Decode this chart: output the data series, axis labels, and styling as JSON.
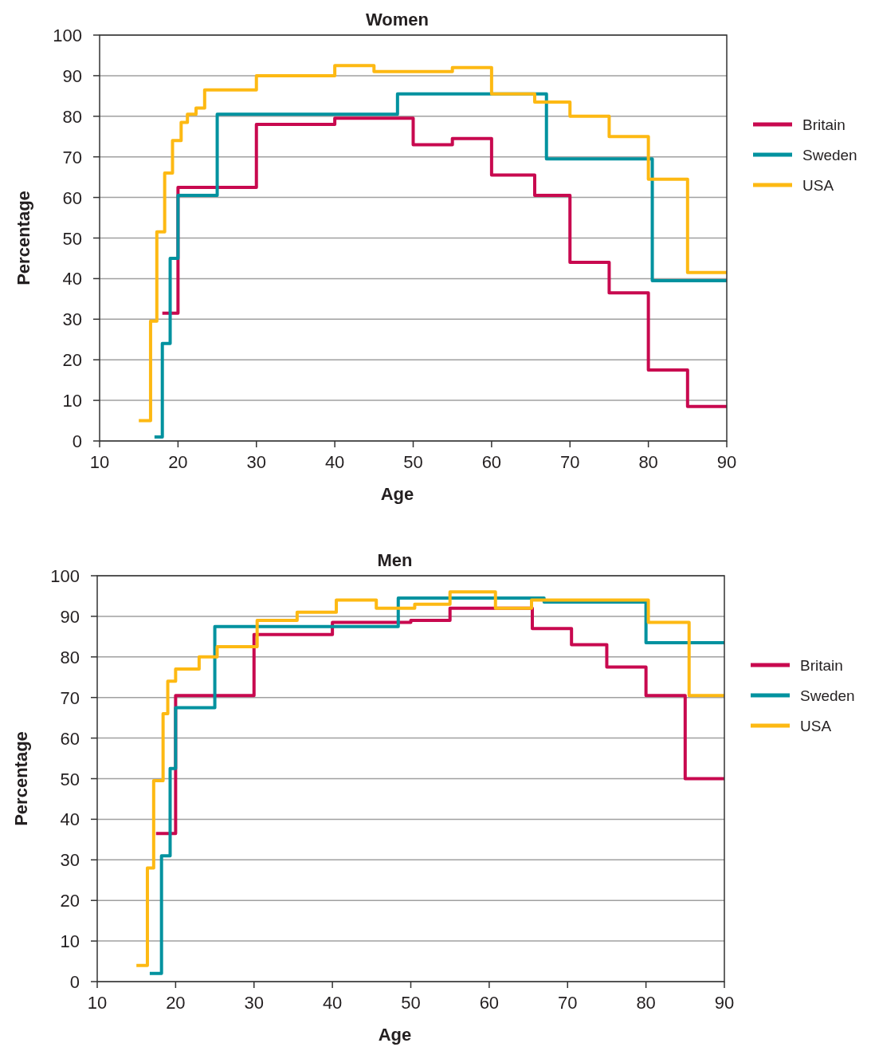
{
  "chart_data": [
    {
      "type": "step",
      "title": "Women",
      "xlabel": "Age",
      "ylabel": "Percentage",
      "xlim": [
        10,
        90
      ],
      "ylim": [
        0,
        100
      ],
      "xticks": [
        10,
        20,
        30,
        40,
        50,
        60,
        70,
        80,
        90
      ],
      "yticks": [
        0,
        10,
        20,
        30,
        40,
        50,
        60,
        70,
        80,
        90,
        100
      ],
      "grid": "y",
      "legend": "right",
      "line_style": "solid",
      "series": [
        {
          "name": "Britain",
          "color": "#c8094f",
          "x": [
            18,
            20,
            30,
            40,
            50,
            55,
            60,
            65.5,
            70,
            75,
            80,
            85,
            90
          ],
          "values": [
            31.5,
            62.5,
            78,
            79.5,
            73,
            74.5,
            65.5,
            60.5,
            44,
            36.5,
            17.5,
            8.5,
            8.5
          ]
        },
        {
          "name": "Sweden",
          "color": "#00929f",
          "x": [
            17,
            18,
            19,
            20,
            25,
            48,
            67,
            80.5,
            90
          ],
          "values": [
            1,
            24,
            45,
            60.5,
            80.5,
            85.5,
            69.5,
            39.5,
            39.5
          ]
        },
        {
          "name": "USA",
          "color": "#fdb913",
          "x": [
            15,
            16.5,
            17.3,
            18.3,
            19.3,
            20.4,
            21.2,
            22.3,
            23.4,
            30,
            40,
            45,
            55,
            60,
            65.5,
            70,
            75,
            80,
            85,
            90
          ],
          "values": [
            5,
            29.5,
            51.5,
            66,
            74,
            78.5,
            80.5,
            82,
            86.5,
            90,
            92.5,
            91,
            92,
            85.5,
            83.5,
            80,
            75,
            64.5,
            41.5,
            41.5
          ]
        }
      ]
    },
    {
      "type": "step",
      "title": "Men",
      "xlabel": "Age",
      "ylabel": "Percentage",
      "xlim": [
        10,
        90
      ],
      "ylim": [
        0,
        100
      ],
      "xticks": [
        10,
        20,
        30,
        40,
        50,
        60,
        70,
        80,
        90
      ],
      "yticks": [
        0,
        10,
        20,
        30,
        40,
        50,
        60,
        70,
        80,
        90,
        100
      ],
      "grid": "y",
      "legend": "right",
      "line_style": "solid",
      "series": [
        {
          "name": "Britain",
          "color": "#c8094f",
          "x": [
            17.5,
            20,
            30,
            40,
            50,
            55,
            65.5,
            70.5,
            75,
            80,
            85,
            90
          ],
          "values": [
            36.5,
            70.5,
            85.5,
            88.5,
            89,
            92,
            87,
            83,
            77.5,
            70.5,
            50,
            50
          ]
        },
        {
          "name": "Sweden",
          "color": "#00929f",
          "x": [
            16.7,
            18.2,
            19.3,
            20,
            25,
            48.4,
            67,
            80,
            90
          ],
          "values": [
            2,
            31,
            52.5,
            67.5,
            87.5,
            94.5,
            93.5,
            83.5,
            83.5
          ]
        },
        {
          "name": "USA",
          "color": "#fdb913",
          "x": [
            15,
            16.4,
            17.2,
            18.4,
            19,
            20,
            23,
            25.3,
            30.4,
            35.5,
            40.5,
            45.6,
            50.5,
            55,
            60.8,
            65.4,
            80.3,
            85.5,
            90
          ],
          "values": [
            4,
            28,
            49.5,
            66,
            74,
            77,
            80,
            82.5,
            89,
            91,
            94,
            92,
            93,
            96,
            92,
            94,
            88.5,
            70.5,
            70.5
          ]
        }
      ]
    }
  ]
}
